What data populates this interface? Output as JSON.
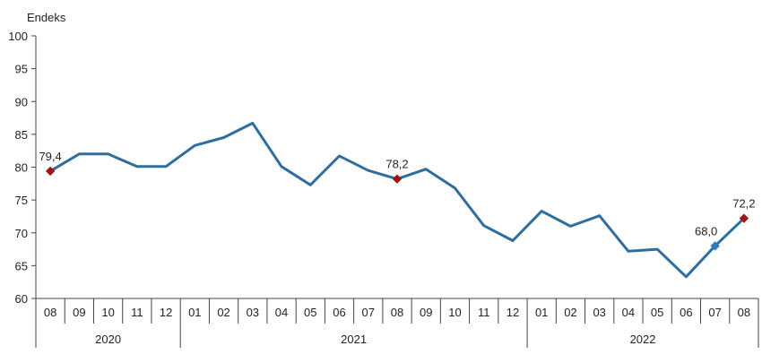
{
  "chart_data": {
    "type": "line",
    "ylabel": "Endeks",
    "ylim": [
      60,
      100
    ],
    "y_ticks": [
      "60",
      "65",
      "70",
      "75",
      "80",
      "85",
      "90",
      "95",
      "100"
    ],
    "categories": [
      "08",
      "09",
      "10",
      "11",
      "12",
      "01",
      "02",
      "03",
      "04",
      "05",
      "06",
      "07",
      "08",
      "09",
      "10",
      "11",
      "12",
      "01",
      "02",
      "03",
      "04",
      "05",
      "06",
      "07",
      "08"
    ],
    "years": [
      {
        "label": "2020",
        "from": 0,
        "to": 4
      },
      {
        "label": "2021",
        "from": 5,
        "to": 16
      },
      {
        "label": "2022",
        "from": 17,
        "to": 24
      }
    ],
    "series": [
      {
        "values": [
          79.4,
          82.0,
          82.0,
          80.1,
          80.1,
          83.3,
          84.5,
          86.7,
          80.1,
          77.3,
          81.7,
          79.5,
          78.2,
          79.7,
          76.8,
          71.1,
          68.8,
          73.3,
          71.0,
          72.6,
          67.2,
          67.5,
          63.3,
          68.0,
          72.2
        ],
        "color": "#2e6e9e"
      }
    ],
    "annotations": [
      {
        "index": 0,
        "label": "79,4",
        "marker_color": "#a31515"
      },
      {
        "index": 12,
        "label": "78,2",
        "marker_color": "#a31515"
      },
      {
        "index": 23,
        "label": "68,0",
        "marker_color": "#2e7bbf"
      },
      {
        "index": 24,
        "label": "72,2",
        "marker_color": "#a31515"
      }
    ],
    "grid": false,
    "legend": "none"
  }
}
